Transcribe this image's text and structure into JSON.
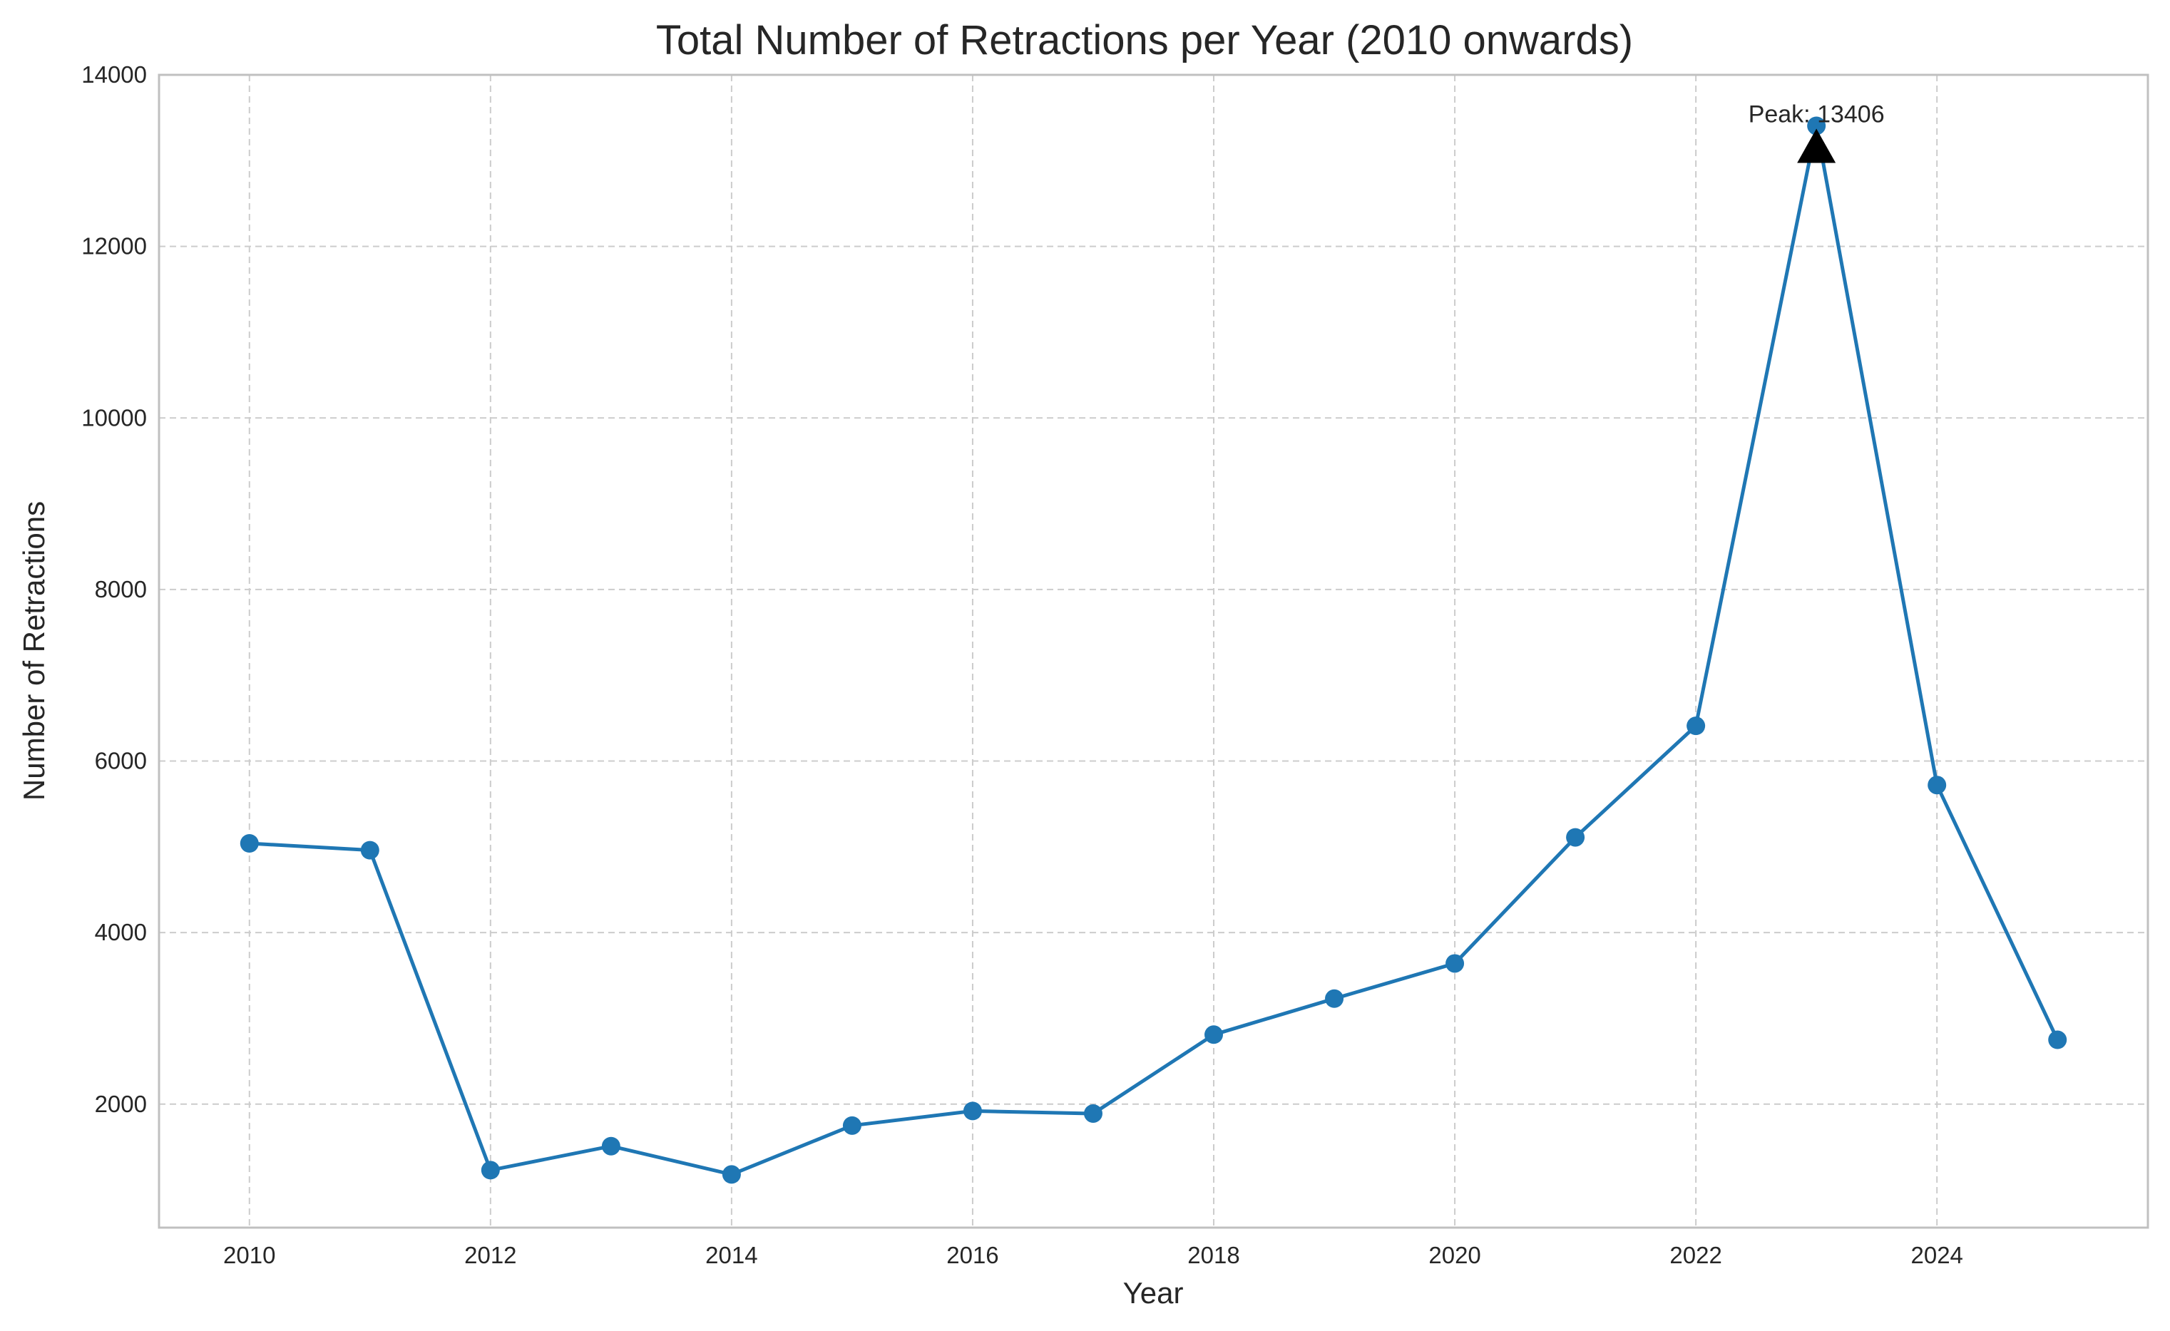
{
  "chart_data": {
    "type": "line",
    "title": "Total Number of Retractions per Year (2010 onwards)",
    "xlabel": "Year",
    "ylabel": "Number of Retractions",
    "x": [
      2010,
      2011,
      2012,
      2013,
      2014,
      2015,
      2016,
      2017,
      2018,
      2019,
      2020,
      2021,
      2022,
      2023,
      2024,
      2025
    ],
    "values": [
      5040,
      4960,
      1230,
      1510,
      1180,
      1750,
      1920,
      1890,
      2810,
      3230,
      3640,
      5110,
      6410,
      13406,
      5720,
      2750
    ],
    "x_ticks": [
      "2010",
      "2012",
      "2014",
      "2016",
      "2018",
      "2020",
      "2022",
      "2024"
    ],
    "y_ticks": [
      "2000",
      "4000",
      "6000",
      "8000",
      "10000",
      "12000",
      "14000"
    ],
    "xlim": [
      2009.25,
      2025.75
    ],
    "ylim": [
      560,
      14000
    ],
    "grid": true,
    "line_color": "#1f77b4",
    "annotation": {
      "text": "Peak: 13406",
      "x": 2023,
      "y": 13406
    }
  }
}
